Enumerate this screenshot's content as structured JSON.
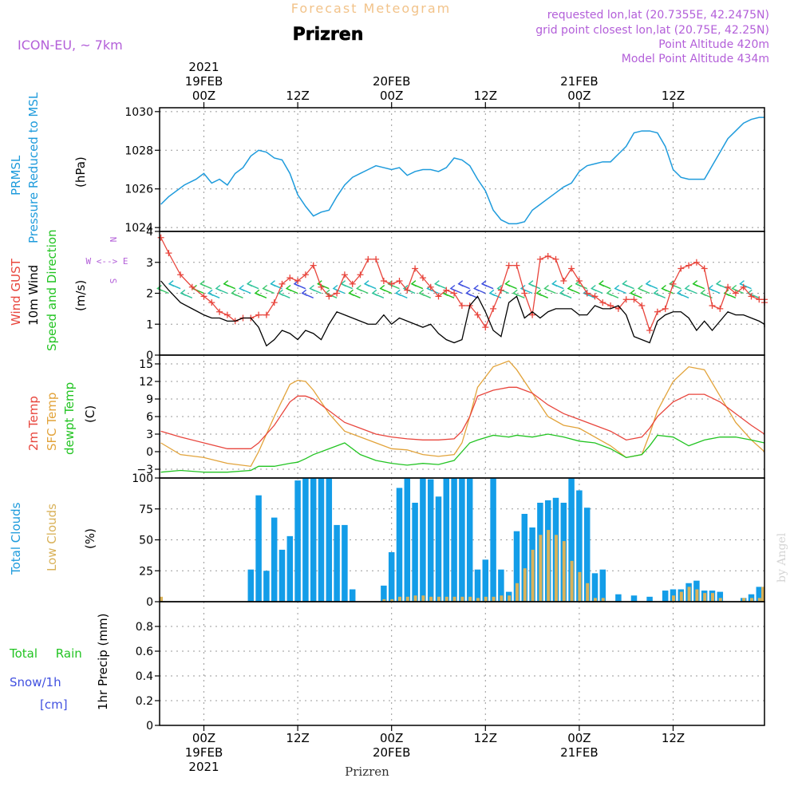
{
  "header": {
    "super_title": "Forecast Meteogram",
    "title": "Prizren",
    "model": "ICON-EU, ~ 7km",
    "requested": "requested lon,lat (20.7355E, 42.2475N)",
    "grid_point": "grid point closest lon,lat (20.75E, 42.25N)",
    "point_altitude": "Point Altitude 420m",
    "model_altitude": "Model Point Altitude 434m",
    "footer": "Prizren",
    "credit": "by Angel"
  },
  "colors": {
    "prmsl": "#1e9bdc",
    "gust": "#e8453c",
    "wind": "#000000",
    "t2m": "#e8453c",
    "tsfc": "#e2a33a",
    "dewpt": "#22c422",
    "total_clouds": "#139de8",
    "low_clouds": "#d9b25a",
    "rain": "#22c422",
    "snow": "#4050e0",
    "model_text": "#b35fd9",
    "super_title": "#f2c38a"
  },
  "time_axis": {
    "top_labels": [
      {
        "h": 0,
        "lines": [
          "2021",
          "19FEB",
          "00Z"
        ]
      },
      {
        "h": 12,
        "lines": [
          "12Z"
        ]
      },
      {
        "h": 24,
        "lines": [
          "20FEB",
          "00Z"
        ]
      },
      {
        "h": 36,
        "lines": [
          "12Z"
        ]
      },
      {
        "h": 48,
        "lines": [
          "21FEB",
          "00Z"
        ]
      },
      {
        "h": 60,
        "lines": [
          "12Z"
        ]
      }
    ],
    "bottom_labels": [
      {
        "h": 0,
        "lines": [
          "00Z",
          "19FEB",
          "2021"
        ]
      },
      {
        "h": 12,
        "lines": [
          "12Z"
        ]
      },
      {
        "h": 24,
        "lines": [
          "00Z",
          "20FEB"
        ]
      },
      {
        "h": 36,
        "lines": [
          "12Z"
        ]
      },
      {
        "h": 48,
        "lines": [
          "00Z",
          "21FEB"
        ]
      },
      {
        "h": 60,
        "lines": [
          "12Z"
        ]
      }
    ]
  },
  "panel_labels": {
    "prmsl": {
      "left": "PRMSL",
      "mid": "Pressure Reduced to MSL",
      "unit": "(hPa)"
    },
    "wind": {
      "gust": "Wind GUST",
      "wind": "10m Wind",
      "dir": "Speed and Direction",
      "unit": "(m/s)",
      "compass_ew": "W <--> E",
      "compass_n": "N",
      "compass_s": "S"
    },
    "temp": {
      "t2m": "2m Temp",
      "tsfc": "SFC Temp",
      "dewpt": "dewpt Temp",
      "unit": "(C)"
    },
    "clouds": {
      "total": "Total Clouds",
      "low": "Low Clouds",
      "unit": "(%)"
    },
    "precip": {
      "rain": "Total Rain",
      "snow": "Snow/1h",
      "cm": "[cm]",
      "unit": "1hr Precip (mm)"
    }
  },
  "chart_data": [
    {
      "type": "line",
      "name": "prmsl",
      "unit": "hPa",
      "ylim": [
        1023.8,
        1030.2
      ],
      "yticks": [
        1024,
        1026,
        1028,
        1030
      ],
      "grid": true,
      "x": [
        -5.5,
        -4.5,
        -2.5,
        -1,
        0,
        1,
        2,
        3,
        4,
        5,
        6,
        7,
        8,
        9,
        10,
        11,
        12,
        13,
        14,
        15,
        16,
        17,
        18,
        19,
        20,
        21,
        22,
        23,
        24,
        25,
        26,
        27,
        28,
        29,
        30,
        31,
        32,
        33,
        34,
        35,
        36,
        37,
        38,
        39,
        40,
        41,
        42,
        43,
        44,
        45,
        46,
        47,
        48,
        49,
        50,
        51,
        52,
        53,
        54,
        55,
        56,
        57,
        58,
        59,
        60,
        61,
        62,
        63,
        64,
        65,
        66,
        67,
        68,
        69,
        70,
        71,
        72,
        73
      ],
      "y": [
        1025.2,
        1025.6,
        1026.2,
        1026.5,
        1026.8,
        1026.3,
        1026.5,
        1026.2,
        1026.8,
        1027.1,
        1027.7,
        1028.0,
        1027.9,
        1027.6,
        1027.5,
        1026.8,
        1025.7,
        1025.1,
        1024.6,
        1024.8,
        1024.9,
        1025.6,
        1026.2,
        1026.6,
        1026.8,
        1027.0,
        1027.2,
        1027.1,
        1027.0,
        1027.1,
        1026.7,
        1026.9,
        1027.0,
        1027.0,
        1026.9,
        1027.1,
        1027.6,
        1027.5,
        1027.2,
        1026.5,
        1025.9,
        1024.9,
        1024.4,
        1024.2,
        1024.2,
        1024.3,
        1024.9,
        1025.2,
        1025.5,
        1025.8,
        1026.1,
        1026.3,
        1026.9,
        1027.2,
        1027.3,
        1027.4,
        1027.4,
        1027.8,
        1028.2,
        1028.9,
        1029.0,
        1029.0,
        1028.9,
        1028.2,
        1027.0,
        1026.6,
        1026.5,
        1026.5,
        1026.5,
        1027.2,
        1027.9,
        1028.6,
        1029.0,
        1029.4,
        1029.6,
        1029.7,
        1029.7,
        1029.7
      ]
    },
    {
      "type": "line",
      "name": "wind",
      "unit": "m/s",
      "ylim": [
        0,
        4
      ],
      "yticks": [
        0,
        1,
        2,
        3,
        4
      ],
      "grid": true,
      "x": [
        -5.5,
        -4.5,
        -3,
        -1.5,
        0,
        1,
        2,
        3,
        4,
        5,
        6,
        7,
        8,
        9,
        10,
        11,
        12,
        13,
        14,
        15,
        16,
        17,
        18,
        19,
        20,
        21,
        22,
        23,
        24,
        25,
        26,
        27,
        28,
        29,
        30,
        31,
        32,
        33,
        34,
        35,
        36,
        37,
        38,
        39,
        40,
        41,
        42,
        43,
        44,
        45,
        46,
        47,
        48,
        49,
        50,
        51,
        52,
        53,
        54,
        55,
        56,
        57,
        58,
        59,
        60,
        61,
        62,
        63,
        64,
        65,
        66,
        67,
        68,
        69,
        70,
        71,
        72,
        73
      ],
      "gust": [
        3.8,
        3.3,
        2.6,
        2.2,
        1.9,
        1.7,
        1.4,
        1.3,
        1.1,
        1.2,
        1.2,
        1.3,
        1.3,
        1.7,
        2.3,
        2.5,
        2.4,
        2.6,
        2.9,
        2.2,
        1.9,
        2.0,
        2.6,
        2.3,
        2.6,
        3.1,
        3.1,
        2.4,
        2.3,
        2.4,
        2.1,
        2.8,
        2.5,
        2.2,
        1.9,
        2.1,
        2.0,
        1.6,
        1.6,
        1.3,
        0.9,
        1.5,
        2.1,
        2.9,
        2.9,
        2.0,
        1.3,
        3.1,
        3.2,
        3.1,
        2.4,
        2.8,
        2.4,
        2.0,
        1.9,
        1.7,
        1.6,
        1.5,
        1.8,
        1.8,
        1.6,
        0.8,
        1.4,
        1.5,
        2.3,
        2.8,
        2.9,
        3.0,
        2.8,
        1.6,
        1.5,
        2.2,
        2.0,
        2.2,
        1.9,
        1.8,
        1.8,
        1.7
      ],
      "wind": [
        2.4,
        2.1,
        1.7,
        1.5,
        1.3,
        1.2,
        1.2,
        1.1,
        1.1,
        1.2,
        1.2,
        0.9,
        0.3,
        0.5,
        0.8,
        0.7,
        0.5,
        0.8,
        0.7,
        0.5,
        1.0,
        1.4,
        1.3,
        1.2,
        1.1,
        1.0,
        1.0,
        1.3,
        1.0,
        1.2,
        1.1,
        1.0,
        0.9,
        1.0,
        0.7,
        0.5,
        0.4,
        0.5,
        1.6,
        1.9,
        1.4,
        0.8,
        0.6,
        1.7,
        1.9,
        1.2,
        1.4,
        1.2,
        1.4,
        1.5,
        1.5,
        1.5,
        1.3,
        1.3,
        1.6,
        1.5,
        1.5,
        1.6,
        1.3,
        0.6,
        0.5,
        0.4,
        1.1,
        1.3,
        1.4,
        1.4,
        1.2,
        0.8,
        1.1,
        0.8,
        1.1,
        1.4,
        1.3,
        1.3,
        1.2,
        1.1,
        1.0,
        0.9
      ]
    },
    {
      "type": "line",
      "name": "temperature",
      "unit": "C",
      "ylim": [
        -4.5,
        16.5
      ],
      "yticks": [
        -3,
        0,
        3,
        6,
        9,
        12,
        15
      ],
      "grid": true,
      "series_x": [
        -5.5,
        -3,
        0,
        3,
        6,
        7,
        9,
        11,
        12,
        13,
        14,
        16,
        18,
        20,
        22,
        24,
        26,
        28,
        30,
        32,
        33,
        34,
        35,
        37,
        39,
        40,
        42,
        44,
        46,
        48,
        50,
        52,
        54,
        56,
        57,
        58,
        60,
        62,
        64,
        66,
        68,
        70,
        73
      ],
      "t2m": [
        3.5,
        2.5,
        1.5,
        0.5,
        0.5,
        1.5,
        4.5,
        8.5,
        9.5,
        9.5,
        9,
        7,
        5,
        4,
        3,
        2.5,
        2.2,
        2,
        2,
        2.2,
        3.5,
        6,
        9.5,
        10.5,
        11,
        11,
        10,
        8,
        6.5,
        5.5,
        4.5,
        3.5,
        2,
        2.5,
        4,
        6,
        8.5,
        9.8,
        9.8,
        8.5,
        6.5,
        4.5,
        3
      ],
      "tsfc": [
        1.5,
        -0.5,
        -1,
        -2,
        -2.5,
        0,
        6,
        11.5,
        12.2,
        12,
        10.5,
        6.5,
        3.5,
        2.5,
        1.5,
        0.5,
        0.3,
        -0.5,
        -0.8,
        -0.5,
        1.5,
        6,
        11,
        14.5,
        15.5,
        14,
        10,
        6,
        4.5,
        4,
        2.5,
        1,
        -1,
        -0.5,
        3,
        7,
        12,
        14.5,
        14,
        9.5,
        5,
        2,
        0
      ],
      "dewpt": [
        -3.5,
        -3.2,
        -3.5,
        -3.5,
        -3.2,
        -2.5,
        -2.5,
        -2,
        -1.8,
        -1.2,
        -0.5,
        0.5,
        1.5,
        -0.5,
        -1.5,
        -2,
        -2.3,
        -2.0,
        -2.2,
        -1.5,
        0,
        1.5,
        2,
        2.8,
        2.5,
        2.8,
        2.5,
        3,
        2.5,
        1.8,
        1.5,
        0.5,
        -1,
        -0.5,
        1,
        2.8,
        2.5,
        1,
        2,
        2.5,
        2.5,
        2,
        1.5
      ]
    },
    {
      "type": "bar",
      "name": "clouds",
      "unit": "%",
      "ylim": [
        0,
        100
      ],
      "yticks": [
        0,
        25,
        50,
        75,
        100
      ],
      "grid": true,
      "hours": [
        6,
        7,
        8,
        9,
        10,
        11,
        12,
        13,
        14,
        15,
        16,
        17,
        18,
        19,
        20,
        21,
        22,
        23,
        24,
        25,
        26,
        27,
        28,
        29,
        30,
        31,
        32,
        33,
        34,
        35,
        36,
        37,
        38,
        39,
        40,
        41,
        42,
        43,
        44,
        45,
        46,
        47,
        48,
        49,
        50,
        51,
        52,
        53,
        54,
        55,
        56,
        57,
        58,
        59,
        60,
        61,
        62,
        63,
        64,
        65,
        66,
        67,
        68,
        69,
        70,
        71,
        72,
        73
      ],
      "total": [
        26,
        86,
        25,
        68,
        42,
        53,
        98,
        100,
        100,
        100,
        100,
        62,
        62,
        10,
        0,
        0,
        0,
        13,
        40,
        92,
        100,
        80,
        100,
        99,
        85,
        100,
        100,
        100,
        100,
        26,
        34,
        100,
        26,
        8,
        57,
        71,
        60,
        80,
        82,
        84,
        80,
        100,
        90,
        76,
        23,
        26,
        0,
        6,
        0,
        5,
        0,
        4,
        0,
        9,
        10,
        10,
        15,
        17,
        9,
        9,
        8,
        0,
        0,
        3,
        6,
        12,
        0,
        0
      ],
      "low": [
        0,
        0,
        0,
        0,
        0,
        0,
        0,
        0,
        0,
        0,
        0,
        0,
        0,
        0,
        0,
        0,
        0,
        2,
        2,
        4,
        4,
        5,
        5,
        4,
        4,
        4,
        4,
        4,
        4,
        3,
        4,
        4,
        5,
        5,
        15,
        27,
        42,
        54,
        58,
        54,
        49,
        33,
        24,
        15,
        3,
        3,
        0,
        0,
        0,
        0,
        0,
        0,
        0,
        0,
        5,
        8,
        12,
        10,
        7,
        7,
        3,
        0,
        0,
        3,
        3,
        3,
        0,
        0
      ]
    },
    {
      "type": "line",
      "name": "precip",
      "unit": "mm",
      "ylim": [
        0,
        1
      ],
      "yticks": [
        0,
        0.2,
        0.4,
        0.6,
        0.8
      ],
      "grid": true,
      "rain": [],
      "snow": []
    }
  ]
}
